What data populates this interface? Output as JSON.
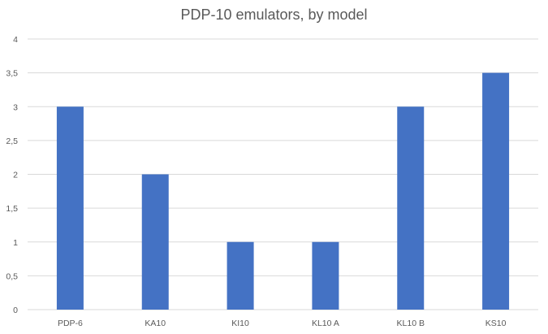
{
  "chart_data": {
    "type": "bar",
    "title": "PDP-10 emulators, by model",
    "categories": [
      "PDP-6",
      "KA10",
      "KI10",
      "KL10 A",
      "KL10 B",
      "KS10"
    ],
    "values": [
      3,
      2,
      1,
      1,
      3,
      3.5
    ],
    "ylim": [
      0,
      4
    ],
    "yticks": [
      "0",
      "0,5",
      "1",
      "1,5",
      "2",
      "2,5",
      "3",
      "3,5",
      "4"
    ],
    "xlabel": "",
    "ylabel": "",
    "grid": true,
    "legend": "none",
    "bar_color": "#4472C4",
    "grid_color": "#D9D9D9"
  }
}
